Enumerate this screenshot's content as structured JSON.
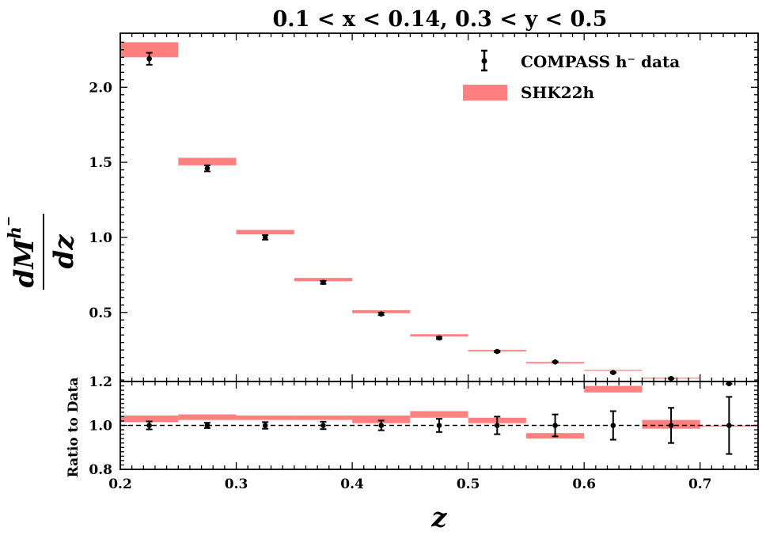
{
  "chart_data": {
    "type": "scatter",
    "title": "0.1 < x < 0.14, 0.3 < y < 0.5",
    "xlabel": "z",
    "ylabel": "dM^{h−}/dz",
    "xlim": [
      0.2,
      0.75
    ],
    "legend": {
      "placement": "top-right",
      "entries": [
        "COMPASS h⁻ data",
        "SHK22h"
      ]
    },
    "colors": {
      "data": "#000000",
      "band": "#ff8080"
    },
    "x": [
      0.225,
      0.275,
      0.325,
      0.375,
      0.425,
      0.475,
      0.525,
      0.575,
      0.625,
      0.675,
      0.725
    ],
    "bins": [
      [
        0.2,
        0.25
      ],
      [
        0.25,
        0.3
      ],
      [
        0.3,
        0.35
      ],
      [
        0.35,
        0.4
      ],
      [
        0.4,
        0.45
      ],
      [
        0.45,
        0.5
      ],
      [
        0.5,
        0.55
      ],
      [
        0.55,
        0.6
      ],
      [
        0.6,
        0.65
      ],
      [
        0.65,
        0.7
      ],
      [
        0.7,
        0.75
      ]
    ],
    "panels": {
      "main": {
        "ylim": [
          0.04,
          2.36
        ],
        "yticks": [
          "0.5",
          "1.0",
          "1.5",
          "2.0"
        ],
        "series": [
          {
            "name": "COMPASS h⁻ data",
            "values": [
              2.19,
              1.46,
              1.0,
              0.7,
              0.49,
              0.33,
              0.24,
              0.17,
              0.1,
              0.06,
              0.025
            ],
            "errors": [
              0.04,
              0.02,
              0.015,
              0.01,
              0.008,
              0.007,
              0.005,
              0.004,
              0.003,
              0.002,
              0.001
            ]
          },
          {
            "name": "SHK22h",
            "band_low": [
              2.2,
              1.48,
              1.02,
              0.708,
              0.495,
              0.34,
              0.24,
              0.16,
              0.112,
              0.06,
              0.025
            ],
            "band_high": [
              2.3,
              1.53,
              1.05,
              0.73,
              0.515,
              0.355,
              0.25,
              0.17,
              0.117,
              0.065,
              0.03
            ]
          }
        ]
      },
      "ratio": {
        "ylabel": "Ratio to Data",
        "ylim": [
          0.8,
          1.2
        ],
        "yticks": [
          "0.8",
          "1.0",
          "1.2"
        ],
        "reference_line": 1.0,
        "series": [
          {
            "name": "COMPASS h⁻ data",
            "values": [
              1.0,
              1.0,
              1.0,
              1.0,
              1.0,
              1.0,
              1.0,
              1.0,
              1.0,
              1.0,
              1.0
            ],
            "errors": [
              0.018,
              0.012,
              0.015,
              0.017,
              0.022,
              0.03,
              0.04,
              0.05,
              0.065,
              0.08,
              0.13
            ]
          },
          {
            "name": "SHK22h",
            "band_low": [
              1.015,
              1.025,
              1.025,
              1.025,
              1.01,
              1.035,
              1.01,
              0.94,
              1.15,
              0.985,
              1.0
            ],
            "band_high": [
              1.045,
              1.05,
              1.045,
              1.045,
              1.045,
              1.065,
              1.035,
              0.965,
              1.18,
              1.025,
              1.0
            ]
          }
        ]
      }
    },
    "xticks": [
      "0.2",
      "0.3",
      "0.4",
      "0.5",
      "0.6",
      "0.7"
    ]
  }
}
